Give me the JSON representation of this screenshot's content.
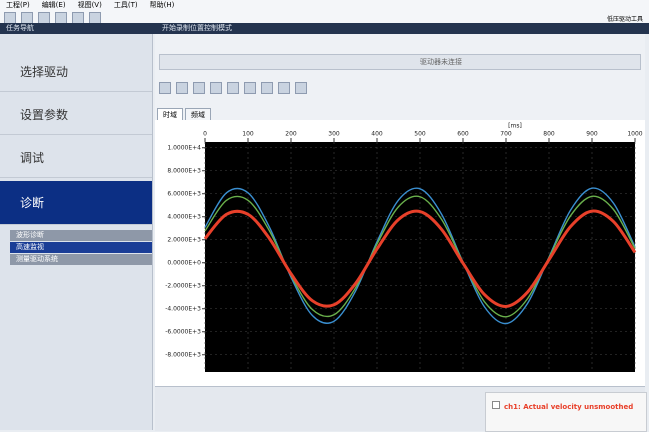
{
  "menu": [
    "工程(P)",
    "编辑(E)",
    "视图(V)",
    "工具(T)",
    "帮助(H)"
  ],
  "header": {
    "left": "任务导航",
    "right": "开始录制位置控制模式",
    "brand": "低压驱动工具"
  },
  "nav": {
    "items": [
      "选择驱动",
      "设置参数",
      "调试",
      "诊断"
    ],
    "sub": [
      "波形诊断",
      "高速监视",
      "测量驱动系统"
    ]
  },
  "toolbar": {
    "field": "驱动器未连接"
  },
  "tabs": [
    "时域",
    "频域"
  ],
  "chart_data": {
    "type": "line",
    "x_label": "[ms]",
    "x": [
      0,
      50,
      100,
      150,
      200,
      250,
      300,
      350,
      400,
      450,
      500,
      550,
      600,
      650,
      700,
      750,
      800,
      850,
      900,
      950,
      1000
    ],
    "series": [
      {
        "color": "#3a8fd0",
        "values": [
          3080,
          6080,
          6080,
          3080,
          -1260,
          -4600,
          -5090,
          -2470,
          1820,
          5450,
          6430,
          4230,
          50,
          -3840,
          -5290,
          -3540,
          490,
          4570,
          6480,
          5180,
          1380
        ]
      },
      {
        "color": "#6ab04c",
        "values": [
          2760,
          5430,
          5430,
          2760,
          -1110,
          -4080,
          -4520,
          -2190,
          1630,
          4870,
          5740,
          3780,
          60,
          -3400,
          -4700,
          -3130,
          450,
          4080,
          5780,
          4630,
          1240
        ]
      },
      {
        "name": "ch1: Actual velocity unsmoothed",
        "color": "#e8402a",
        "values": [
          2100,
          4210,
          4210,
          2100,
          -960,
          -3310,
          -3650,
          -1810,
          1200,
          3760,
          4450,
          2910,
          -40,
          -2770,
          -3800,
          -2560,
          270,
          3140,
          4490,
          3580,
          900
        ]
      }
    ],
    "xlim": [
      0,
      1000
    ],
    "xticks": [
      0,
      100,
      200,
      300,
      400,
      500,
      600,
      700,
      800,
      900,
      1000
    ],
    "ylim": [
      -9500,
      10500
    ],
    "yticks": [
      {
        "value": 10000,
        "label": "1.0000E+4"
      },
      {
        "value": 8000,
        "label": "8.0000E+3"
      },
      {
        "value": 6000,
        "label": "6.0000E+3"
      },
      {
        "value": 4000,
        "label": "4.0000E+3"
      },
      {
        "value": 2000,
        "label": "2.0000E+3"
      },
      {
        "value": 0,
        "label": "0.0000E+0"
      },
      {
        "value": -2000,
        "label": "-2.0000E+3"
      },
      {
        "value": -4000,
        "label": "-4.0000E+3"
      },
      {
        "value": -6000,
        "label": "-6.0000E+3"
      },
      {
        "value": -8000,
        "label": "-8.0000E+3"
      }
    ],
    "grid": true,
    "background": "#000000"
  }
}
